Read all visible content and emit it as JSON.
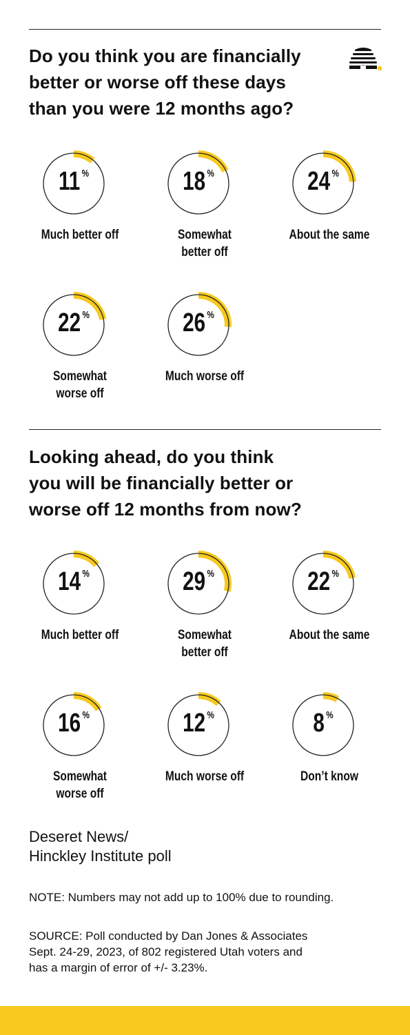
{
  "colors": {
    "accent": "#f7c91e",
    "ring": "#222222",
    "text": "#111111"
  },
  "icons": {
    "logo": "beehive-icon"
  },
  "questions": [
    {
      "title_lines": [
        "Do you think you are financially",
        "better or worse off these days",
        "than you were 12 months ago?"
      ]
    },
    {
      "title_lines": [
        "Looking ahead, do you think",
        "you will be financially better or",
        "worse off 12 months from now?"
      ]
    }
  ],
  "chart_data": [
    {
      "type": "donut",
      "title": "Do you think you are financially better or worse off these days than you were 12 months ago?",
      "unit": "%",
      "categories": [
        "Much better off",
        "Somewhat better off",
        "About the same",
        "Somewhat worse off",
        "Much worse off"
      ],
      "label_lines": [
        [
          "Much better off"
        ],
        [
          "Somewhat",
          "better off"
        ],
        [
          "About the same"
        ],
        [
          "Somewhat",
          "worse off"
        ],
        [
          "Much worse off"
        ]
      ],
      "values": [
        11,
        18,
        24,
        22,
        26
      ]
    },
    {
      "type": "donut",
      "title": "Looking ahead, do you think you will be financially better or worse off 12 months from now?",
      "unit": "%",
      "categories": [
        "Much better off",
        "Somewhat better off",
        "About the same",
        "Somewhat worse off",
        "Much worse off",
        "Don’t know"
      ],
      "label_lines": [
        [
          "Much better off"
        ],
        [
          "Somewhat",
          "better off"
        ],
        [
          "About the same"
        ],
        [
          "Somewhat",
          "worse off"
        ],
        [
          "Much worse off"
        ],
        [
          "Don’t know"
        ]
      ],
      "values": [
        14,
        29,
        22,
        16,
        12,
        8
      ]
    }
  ],
  "footer": {
    "credit_line1": "Deseret News/",
    "credit_line2": "Hinckley Institute poll",
    "note": "NOTE: Numbers may not add up to 100% due to rounding.",
    "source_lines": [
      "SOURCE: Poll conducted by Dan Jones & Associates",
      "Sept. 24-29, 2023, of 802 registered Utah voters and",
      "has a margin of error of +/- 3.23%."
    ]
  }
}
